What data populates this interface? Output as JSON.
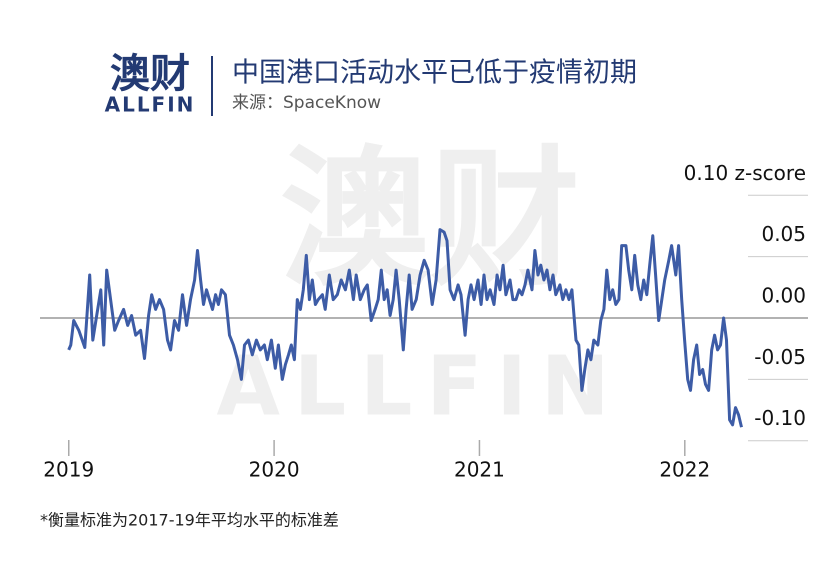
{
  "logo": {
    "mark": "澳财",
    "text": "ALLFIN"
  },
  "watermark": {
    "mark": "澳财",
    "text": "ALLFIN"
  },
  "chart_data": {
    "type": "line",
    "title": "中国港口活动水平已低于疫情初期",
    "subtitle": "来源：SpaceKnow",
    "note": "*衡量标准为2017-19年平均水平的标准差",
    "color": "#3d5ca6",
    "xlim": [
      2018.86,
      2022.6
    ],
    "xticks": [
      2019,
      2020,
      2021,
      2022
    ],
    "ylim": [
      -0.11,
      0.11
    ],
    "yticks": [
      {
        "value": 0.1,
        "label": "0.10 z-score"
      },
      {
        "value": 0.05,
        "label": "0.05"
      },
      {
        "value": 0,
        "label": "0.00"
      },
      {
        "value": -0.05,
        "label": "-0.05"
      },
      {
        "value": -0.1,
        "label": "-0.10"
      }
    ],
    "x": [
      2019.0,
      2019.01,
      2019.024,
      2019.049,
      2019.078,
      2019.102,
      2019.117,
      2019.136,
      2019.156,
      2019.17,
      2019.185,
      2019.204,
      2019.224,
      2019.243,
      2019.267,
      2019.287,
      2019.306,
      2019.326,
      2019.35,
      2019.369,
      2019.389,
      2019.404,
      2019.423,
      2019.442,
      2019.462,
      2019.481,
      2019.496,
      2019.515,
      2019.535,
      2019.554,
      2019.574,
      2019.593,
      2019.613,
      2019.627,
      2019.642,
      2019.656,
      2019.671,
      2019.685,
      2019.7,
      2019.715,
      2019.729,
      2019.744,
      2019.763,
      2019.783,
      2019.802,
      2019.822,
      2019.841,
      2019.856,
      2019.875,
      2019.894,
      2019.914,
      2019.933,
      2019.953,
      2019.967,
      2019.987,
      2020.006,
      2020.021,
      2020.04,
      2020.055,
      2020.07,
      2020.084,
      2020.099,
      2020.113,
      2020.128,
      2020.142,
      2020.157,
      2020.172,
      2020.186,
      2020.201,
      2020.215,
      2020.235,
      2020.249,
      2020.269,
      2020.288,
      2020.308,
      2020.327,
      2020.347,
      2020.366,
      2020.386,
      2020.4,
      2020.42,
      2020.439,
      2020.454,
      2020.473,
      2020.492,
      2020.507,
      2020.522,
      2020.536,
      2020.551,
      2020.565,
      2020.58,
      2020.594,
      2020.609,
      2020.629,
      2020.643,
      2020.658,
      2020.672,
      2020.692,
      2020.711,
      2020.731,
      2020.75,
      2020.77,
      2020.789,
      2020.808,
      2020.828,
      2020.842,
      2020.857,
      2020.876,
      2020.896,
      2020.91,
      2020.93,
      2020.945,
      2020.959,
      2020.974,
      2020.993,
      2021.008,
      2021.022,
      2021.037,
      2021.052,
      2021.071,
      2021.086,
      2021.1,
      2021.115,
      2021.129,
      2021.149,
      2021.163,
      2021.178,
      2021.193,
      2021.207,
      2021.222,
      2021.236,
      2021.256,
      2021.27,
      2021.285,
      2021.299,
      2021.314,
      2021.329,
      2021.343,
      2021.358,
      2021.372,
      2021.392,
      2021.406,
      2021.421,
      2021.436,
      2021.45,
      2021.47,
      2021.484,
      2021.499,
      2021.513,
      2021.528,
      2021.543,
      2021.557,
      2021.577,
      2021.591,
      2021.606,
      2021.62,
      2021.635,
      2021.649,
      2021.664,
      2021.679,
      2021.693,
      2021.713,
      2021.727,
      2021.742,
      2021.756,
      2021.771,
      2021.786,
      2021.8,
      2021.815,
      2021.829,
      2021.844,
      2021.858,
      2021.873,
      2021.888,
      2021.902,
      2021.922,
      2021.936,
      2021.956,
      2021.97,
      2021.985,
      2021.999,
      2022.014,
      2022.028,
      2022.043,
      2022.058,
      2022.072,
      2022.087,
      2022.101,
      2022.116,
      2022.131,
      2022.145,
      2022.16,
      2022.174,
      2022.189,
      2022.203,
      2022.218,
      2022.233,
      2022.247,
      2022.262,
      2022.276
    ],
    "values": [
      -0.026,
      -0.022,
      -0.002,
      -0.01,
      -0.024,
      0.035,
      -0.018,
      0.002,
      0.023,
      -0.022,
      0.039,
      0.015,
      -0.01,
      -0.002,
      0.007,
      -0.006,
      0.002,
      -0.014,
      -0.01,
      -0.033,
      0.002,
      0.019,
      0.007,
      0.015,
      0.007,
      -0.018,
      -0.026,
      -0.002,
      -0.01,
      0.019,
      -0.006,
      0.015,
      0.031,
      0.055,
      0.031,
      0.011,
      0.023,
      0.015,
      0.007,
      0.019,
      0.011,
      0.023,
      0.019,
      -0.014,
      -0.022,
      -0.034,
      -0.05,
      -0.022,
      -0.018,
      -0.03,
      -0.018,
      -0.026,
      -0.022,
      -0.034,
      -0.018,
      -0.041,
      -0.022,
      -0.05,
      -0.038,
      -0.03,
      -0.022,
      -0.034,
      0.015,
      0.007,
      0.023,
      0.051,
      0.015,
      0.031,
      0.011,
      0.015,
      0.019,
      0.007,
      0.035,
      0.015,
      0.019,
      0.031,
      0.023,
      0.039,
      0.015,
      0.035,
      0.015,
      0.023,
      0.027,
      -0.002,
      0.007,
      0.015,
      0.039,
      0.015,
      0.023,
      0.002,
      0.015,
      0.039,
      0.015,
      -0.026,
      0.007,
      0.035,
      0.007,
      0.015,
      0.035,
      0.047,
      0.039,
      0.011,
      0.031,
      0.072,
      0.07,
      0.063,
      0.023,
      0.015,
      0.027,
      0.019,
      -0.014,
      0.015,
      0.027,
      0.015,
      0.031,
      0.011,
      0.035,
      0.015,
      0.023,
      0.011,
      0.035,
      0.023,
      0.043,
      0.019,
      0.031,
      0.015,
      0.015,
      0.023,
      0.019,
      0.027,
      0.039,
      0.023,
      0.055,
      0.035,
      0.043,
      0.031,
      0.039,
      0.023,
      0.035,
      0.019,
      0.027,
      0.015,
      0.023,
      0.015,
      0.023,
      -0.018,
      -0.022,
      -0.059,
      -0.042,
      -0.026,
      -0.034,
      -0.018,
      -0.022,
      -0.002,
      0.007,
      0.039,
      0.015,
      0.023,
      0.011,
      0.015,
      0.059,
      0.059,
      0.039,
      0.023,
      0.051,
      0.027,
      0.015,
      0.031,
      0.019,
      0.043,
      0.067,
      0.035,
      -0.002,
      0.015,
      0.031,
      0.047,
      0.059,
      0.035,
      0.059,
      0.015,
      -0.018,
      -0.05,
      -0.059,
      -0.034,
      -0.022,
      -0.046,
      -0.042,
      -0.054,
      -0.059,
      -0.026,
      -0.014,
      -0.026,
      -0.022,
      0,
      -0.018,
      -0.083,
      -0.087,
      -0.073,
      -0.079,
      -0.089
    ]
  }
}
